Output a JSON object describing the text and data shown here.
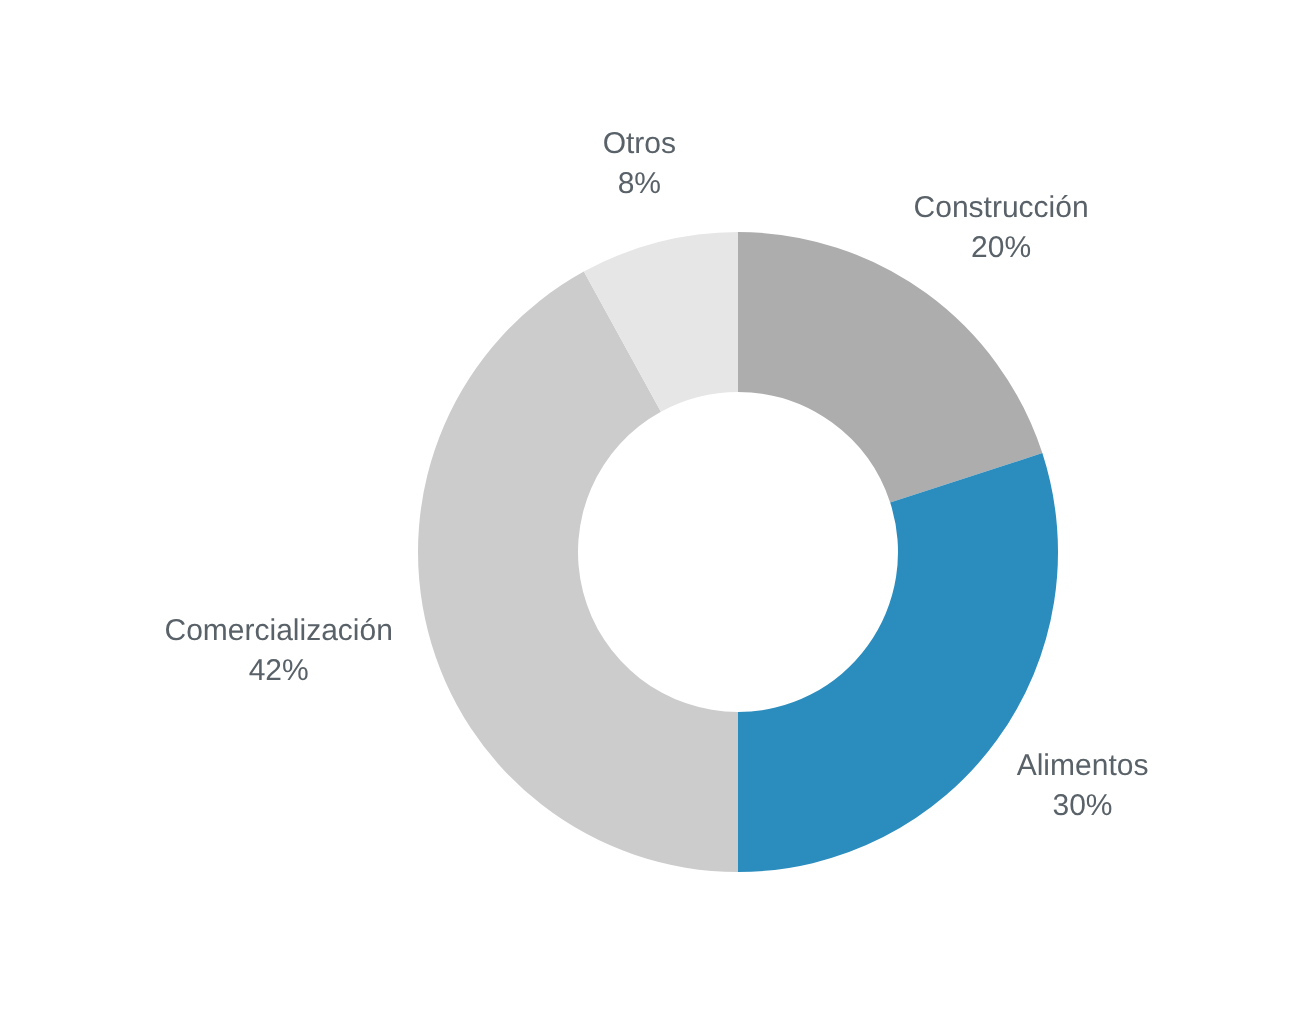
{
  "chart_data": {
    "type": "donut",
    "categories": [
      "Construcción",
      "Alimentos",
      "Comercialización",
      "Otros"
    ],
    "values": [
      20,
      30,
      42,
      8
    ],
    "colors": [
      "#adadad",
      "#2b8cbe",
      "#cccccc",
      "#e6e6e6"
    ],
    "value_labels": [
      "20%",
      "30%",
      "42%",
      "8%"
    ]
  }
}
